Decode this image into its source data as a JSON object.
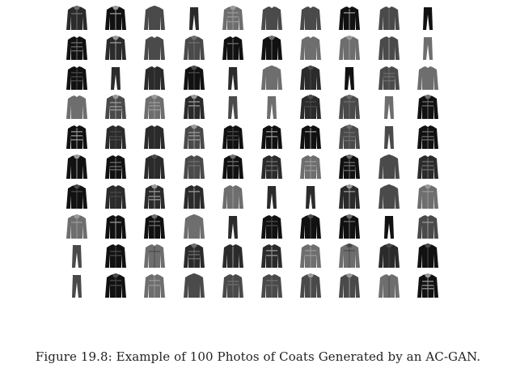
{
  "figure": {
    "caption": "Figure 19.8: Example of 100 Photos of Coats Generated by an AC-GAN.",
    "grid": {
      "rows": 10,
      "cols": 10,
      "item_kind": "generated coat photo",
      "palette": [
        "#111111",
        "#2b2b2b",
        "#4a4a4a",
        "#6e6e6e",
        "#9a9a9a",
        "#c4c4c4"
      ]
    }
  }
}
